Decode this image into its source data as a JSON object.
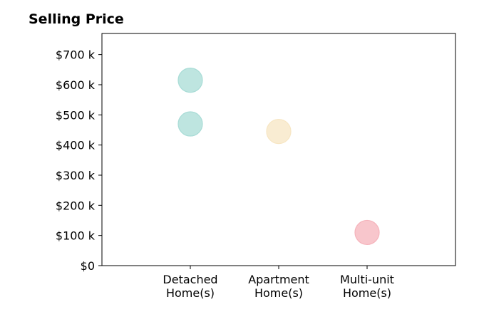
{
  "chart_data": {
    "type": "scatter",
    "title": "Selling Price",
    "xlabel": "",
    "ylabel": "",
    "categories": [
      [
        "Detached",
        "Home(s)"
      ],
      [
        "Apartment",
        "Home(s)"
      ],
      [
        "Multi-unit",
        "Home(s)"
      ]
    ],
    "x_range": [
      -1,
      3
    ],
    "ylim": [
      0,
      770000
    ],
    "y_ticks": [
      0,
      100000,
      200000,
      300000,
      400000,
      500000,
      600000,
      700000
    ],
    "y_tick_labels": [
      "$0",
      "$100 k",
      "$200 k",
      "$300 k",
      "$400 k",
      "$500 k",
      "$600 k",
      "$700 k"
    ],
    "grid": false,
    "legend": "none",
    "points": [
      {
        "category": 0,
        "value": 615000,
        "color": "#a8dcd6"
      },
      {
        "category": 0,
        "value": 470000,
        "color": "#a8dcd6"
      },
      {
        "category": 1,
        "value": 445000,
        "color": "#f7e6c3"
      },
      {
        "category": 2,
        "value": 110000,
        "color": "#f5b3bb"
      }
    ]
  }
}
